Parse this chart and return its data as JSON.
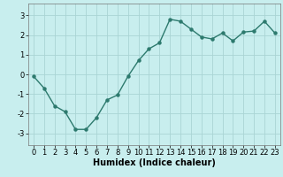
{
  "x": [
    0,
    1,
    2,
    3,
    4,
    5,
    6,
    7,
    8,
    9,
    10,
    11,
    12,
    13,
    14,
    15,
    16,
    17,
    18,
    19,
    20,
    21,
    22,
    23
  ],
  "y": [
    -0.1,
    -0.7,
    -1.6,
    -1.9,
    -2.8,
    -2.8,
    -2.2,
    -1.3,
    -1.05,
    -0.1,
    0.7,
    1.3,
    1.6,
    2.8,
    2.7,
    2.3,
    1.9,
    1.8,
    2.1,
    1.7,
    2.15,
    2.2,
    2.7,
    2.1
  ],
  "line_color": "#2d7a6e",
  "marker": "o",
  "marker_size": 2.2,
  "line_width": 1.0,
  "bg_color": "#c8eeee",
  "grid_color": "#aad4d4",
  "xlabel": "Humidex (Indice chaleur)",
  "xlabel_fontsize": 7,
  "tick_fontsize": 6,
  "xlim": [
    -0.5,
    23.5
  ],
  "ylim": [
    -3.6,
    3.6
  ],
  "yticks": [
    -3,
    -2,
    -1,
    0,
    1,
    2,
    3
  ],
  "xticks": [
    0,
    1,
    2,
    3,
    4,
    5,
    6,
    7,
    8,
    9,
    10,
    11,
    12,
    13,
    14,
    15,
    16,
    17,
    18,
    19,
    20,
    21,
    22,
    23
  ]
}
